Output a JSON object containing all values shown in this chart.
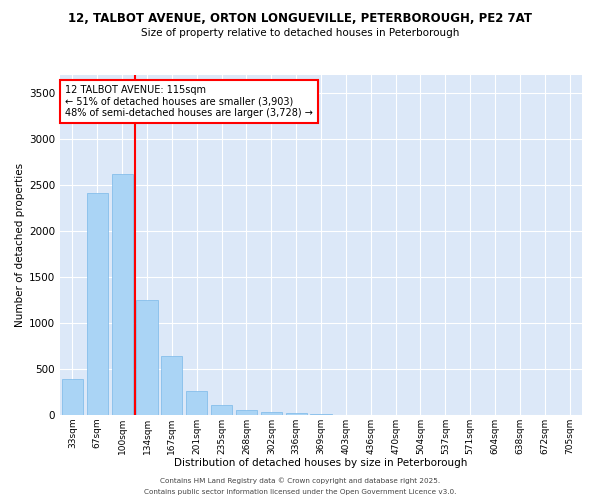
{
  "title_line1": "12, TALBOT AVENUE, ORTON LONGUEVILLE, PETERBOROUGH, PE2 7AT",
  "title_line2": "Size of property relative to detached houses in Peterborough",
  "xlabel": "Distribution of detached houses by size in Peterborough",
  "ylabel": "Number of detached properties",
  "categories": [
    "33sqm",
    "67sqm",
    "100sqm",
    "134sqm",
    "167sqm",
    "201sqm",
    "235sqm",
    "268sqm",
    "302sqm",
    "336sqm",
    "369sqm",
    "403sqm",
    "436sqm",
    "470sqm",
    "504sqm",
    "537sqm",
    "571sqm",
    "604sqm",
    "638sqm",
    "672sqm",
    "705sqm"
  ],
  "values": [
    390,
    2420,
    2620,
    1250,
    640,
    260,
    105,
    55,
    30,
    18,
    8,
    3,
    0,
    0,
    0,
    0,
    0,
    0,
    0,
    0,
    0
  ],
  "bar_color": "#aad4f5",
  "bar_edge_color": "#7ab8e8",
  "vline_x_idx": 2,
  "vline_color": "red",
  "annotation_text": "12 TALBOT AVENUE: 115sqm\n← 51% of detached houses are smaller (3,903)\n48% of semi-detached houses are larger (3,728) →",
  "annotation_box_color": "white",
  "annotation_box_edge": "red",
  "ylim": [
    0,
    3700
  ],
  "yticks": [
    0,
    500,
    1000,
    1500,
    2000,
    2500,
    3000,
    3500
  ],
  "bg_color": "#dce8f8",
  "grid_color": "white",
  "footnote1": "Contains HM Land Registry data © Crown copyright and database right 2025.",
  "footnote2": "Contains public sector information licensed under the Open Government Licence v3.0."
}
